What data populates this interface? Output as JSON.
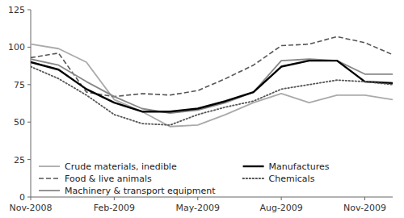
{
  "chart_data": {
    "type": "line",
    "x": [
      0,
      1,
      2,
      3,
      4,
      5,
      6,
      7,
      8,
      9,
      10,
      11,
      12,
      13
    ],
    "xlim": [
      0,
      13
    ],
    "xticks": [
      {
        "value": 0,
        "label": "Nov-2008"
      },
      {
        "value": 3,
        "label": "Feb-2009"
      },
      {
        "value": 6,
        "label": "May-2009"
      },
      {
        "value": 9,
        "label": "Aug-2009"
      },
      {
        "value": 12,
        "label": "Nov-2009"
      }
    ],
    "ylim": [
      0,
      125
    ],
    "yticks": [
      0,
      25,
      50,
      75,
      100,
      125
    ],
    "grid": false,
    "legend": "lower left",
    "series": [
      {
        "name": "Crude materials, inedible",
        "color": "#aaaaaa",
        "line_style": "solid",
        "values": [
          102,
          99,
          90,
          65,
          57,
          47,
          48,
          55,
          63,
          69,
          63,
          68,
          68,
          65
        ]
      },
      {
        "name": "Food & live animals",
        "color": "#555555",
        "line_style": "dashed",
        "values": [
          93,
          96,
          70,
          67,
          69,
          68,
          71,
          79,
          88,
          101,
          102,
          107,
          103,
          95
        ]
      },
      {
        "name": "Machinery & transport equipment",
        "color": "#888888",
        "line_style": "solid",
        "values": [
          92,
          88,
          77,
          67,
          59,
          56,
          58,
          63,
          70,
          91,
          92,
          91,
          82,
          82
        ]
      },
      {
        "name": "Manufactures",
        "color": "#000000",
        "line_style": "solid",
        "values": [
          90,
          85,
          72,
          63,
          57,
          57,
          59,
          64,
          70,
          87,
          91,
          91,
          77,
          76
        ]
      },
      {
        "name": "Chemicals",
        "color": "#555555",
        "line_style": "dotted",
        "values": [
          87,
          79,
          68,
          55,
          49,
          48,
          55,
          60,
          64,
          72,
          75,
          78,
          77,
          75
        ]
      }
    ]
  }
}
